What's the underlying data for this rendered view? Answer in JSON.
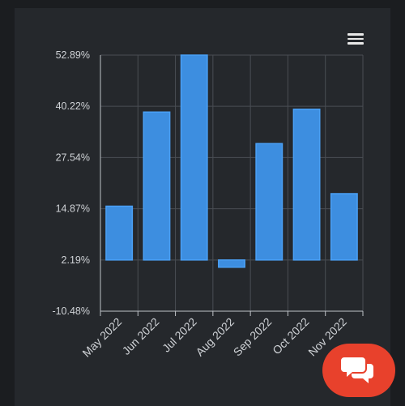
{
  "chart_data": {
    "type": "bar",
    "categories": [
      "May 2022",
      "Jun 2022",
      "Jul 2022",
      "Aug 2022",
      "Sep 2022",
      "Oct 2022",
      "Nov 2022"
    ],
    "values": [
      15.5,
      38.8,
      52.89,
      0.4,
      31.0,
      39.5,
      18.6
    ],
    "baseline": 2.19,
    "ylim": [
      -10.48,
      52.89
    ],
    "yticks": [
      "52.89%",
      "40.22%",
      "27.54%",
      "14.87%",
      "2.19%",
      "-10.48%"
    ],
    "ytick_values": [
      52.89,
      40.22,
      27.54,
      14.87,
      2.19,
      -10.48
    ],
    "grid": true,
    "bar_color": "#3d8ee0",
    "bar_border_color": "#4aa0f5"
  },
  "ui": {
    "menu_icon": "hamburger-menu-icon",
    "chat_icon": "chat-bubbles-icon",
    "chat_color": "#e8412c"
  }
}
